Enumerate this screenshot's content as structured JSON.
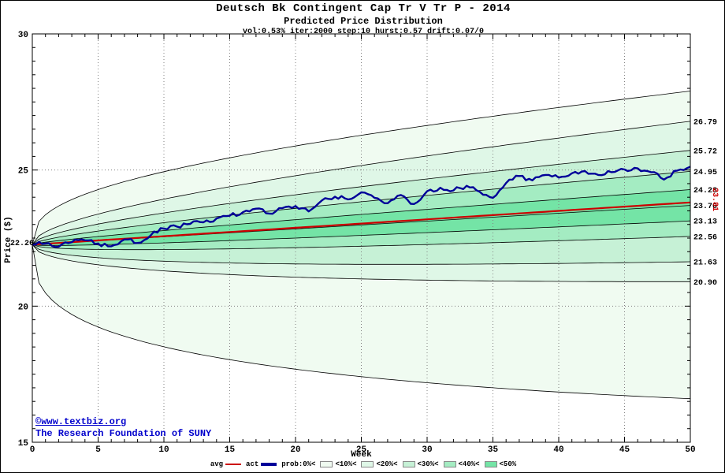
{
  "chart_data": {
    "type": "area",
    "title": "Deutsch Bk Contingent Cap Tr V Tr P - 2014",
    "subtitle": "Predicted Price Distribution",
    "params": "vol:0.53% iter:2000 step:10 hurst:0.57 drift:0.07/0",
    "xlabel": "Week",
    "ylabel": "Price ($)",
    "xlim": [
      0,
      50
    ],
    "ylim": [
      15,
      30
    ],
    "x_ticks": [
      0,
      5,
      10,
      15,
      20,
      25,
      30,
      35,
      40,
      45,
      50
    ],
    "y_ticks": [
      15,
      20,
      25,
      30
    ],
    "grid": true,
    "legend_position": "bottom",
    "start": 22.26,
    "start_label": "22.26",
    "median_end": 23.7,
    "avg_end": 23.81,
    "avg_end_label": "23.81",
    "avg_color": "#cc0000",
    "act_color": "#000099",
    "right_axis_labels": [
      "26.79",
      "25.72",
      "24.95",
      "24.28",
      "23.70",
      "23.13",
      "22.56",
      "21.63",
      "20.90"
    ],
    "bands": [
      {
        "label": "<10%",
        "upper_end": 27.9,
        "lower_end": 16.6,
        "exp": 0.35,
        "color": "#f0fbf1"
      },
      {
        "label": "<20%",
        "upper_end": 26.79,
        "lower_end": 20.9,
        "exp": 0.5,
        "color": "#dff7e7"
      },
      {
        "label": "<30%",
        "upper_end": 25.72,
        "lower_end": 21.63,
        "exp": 0.52,
        "color": "#c6f1d6"
      },
      {
        "label": "<40%",
        "upper_end": 24.95,
        "lower_end": 22.56,
        "exp": 0.55,
        "color": "#a4ecc2"
      },
      {
        "label": "<50%",
        "upper_end": 24.28,
        "lower_end": 23.13,
        "exp": 0.58,
        "color": "#74e4a6"
      }
    ],
    "actual_weekly": [
      22.26,
      22.3,
      22.18,
      22.35,
      22.42,
      22.3,
      22.2,
      22.45,
      22.32,
      22.6,
      22.85,
      22.92,
      23.02,
      23.08,
      23.22,
      23.32,
      23.45,
      23.58,
      23.4,
      23.6,
      23.68,
      23.48,
      23.88,
      24.02,
      23.92,
      24.18,
      23.98,
      23.78,
      24.08,
      23.75,
      24.22,
      24.35,
      24.25,
      24.42,
      24.2,
      23.98,
      24.52,
      24.78,
      24.62,
      24.82,
      24.72,
      24.88,
      24.96,
      24.82,
      24.92,
      25.02,
      25.06,
      24.92,
      24.65,
      24.98,
      25.12
    ]
  },
  "legend": {
    "items": [
      {
        "label": "avg",
        "sample": "line",
        "color": "#cc0000",
        "thickness": 2,
        "pos": "after"
      },
      {
        "label": "act",
        "sample": "line",
        "color": "#000099",
        "thickness": 4,
        "pos": "after"
      },
      {
        "label": "prob:0%<",
        "sample": "none",
        "pos": "after"
      },
      {
        "label": "<10%<",
        "sample": "swatch",
        "color": "#f0fbf1",
        "pos": "before"
      },
      {
        "label": "<20%<",
        "sample": "swatch",
        "color": "#dff7e7",
        "pos": "before"
      },
      {
        "label": "<30%<",
        "sample": "swatch",
        "color": "#c6f1d6",
        "pos": "before"
      },
      {
        "label": "<40%<",
        "sample": "swatch",
        "color": "#a4ecc2",
        "pos": "before"
      },
      {
        "label": "<50%",
        "sample": "swatch",
        "color": "#74e4a6",
        "pos": "before"
      }
    ]
  },
  "copyright": {
    "line1": "©www.textbiz.org",
    "line2": "The Research Foundation of SUNY"
  }
}
